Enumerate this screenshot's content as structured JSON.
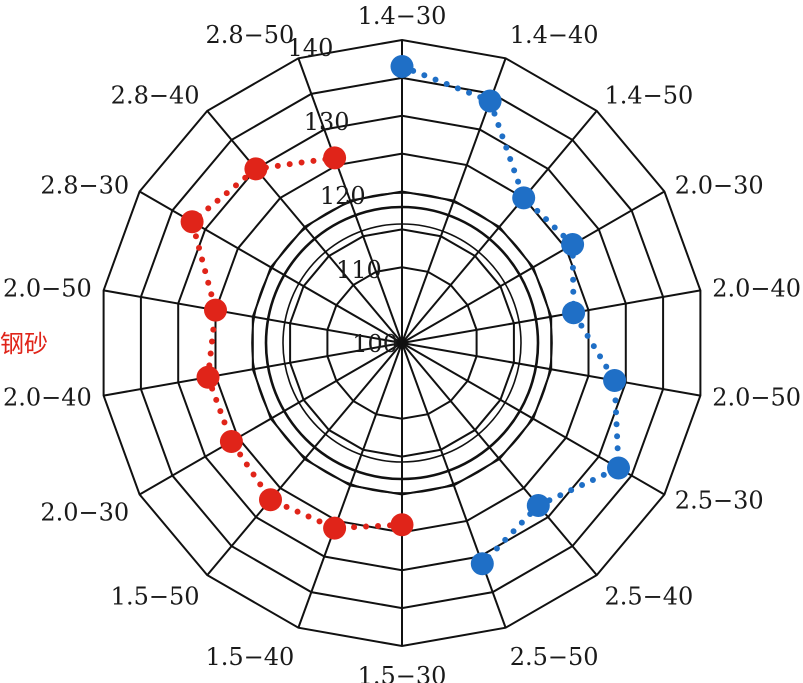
{
  "chart_data": {
    "type": "radar",
    "categories": [
      "1.4-30",
      "1.4-40",
      "1.4-50",
      "2.0-30",
      "2.0-40",
      "2.0-50",
      "2.5-30",
      "2.5-40",
      "2.5-50",
      "1.5-30",
      "1.5-40",
      "1.5-50",
      "2.0-30",
      "2.0-40",
      "2.0-50",
      "2.8-30",
      "2.8-40",
      "2.8-50"
    ],
    "r_ticks": [
      100,
      110,
      120,
      130,
      140
    ],
    "r_range": [
      100,
      140
    ],
    "grid_rings": [
      110,
      115,
      120,
      125,
      130,
      135,
      140
    ],
    "side_label": "钢砂",
    "series": [
      {
        "color": "#1f6fc6",
        "points": [
          {
            "category_index": 0,
            "value": 136.5
          },
          {
            "category_index": 1,
            "value": 134.0
          },
          {
            "category_index": 2,
            "value": 125.0
          },
          {
            "category_index": 3,
            "value": 126.0
          },
          {
            "category_index": 4,
            "value": 123.0
          },
          {
            "category_index": 5,
            "value": 128.5
          },
          {
            "category_index": 6,
            "value": 133.0
          },
          {
            "category_index": 7,
            "value": 128.0
          },
          {
            "category_index": 8,
            "value": 131.0
          }
        ]
      },
      {
        "color": "#e02419",
        "points": [
          {
            "category_index": 9,
            "value": 124.0
          },
          {
            "category_index": 10,
            "value": 126.0
          },
          {
            "category_index": 11,
            "value": 127.0
          },
          {
            "category_index": 12,
            "value": 126.0
          },
          {
            "category_index": 13,
            "value": 126.0
          },
          {
            "category_index": 14,
            "value": 125.0
          },
          {
            "category_index": 15,
            "value": 132.0
          },
          {
            "category_index": 16,
            "value": 130.0
          },
          {
            "category_index": 17,
            "value": 126.0
          }
        ]
      }
    ]
  }
}
